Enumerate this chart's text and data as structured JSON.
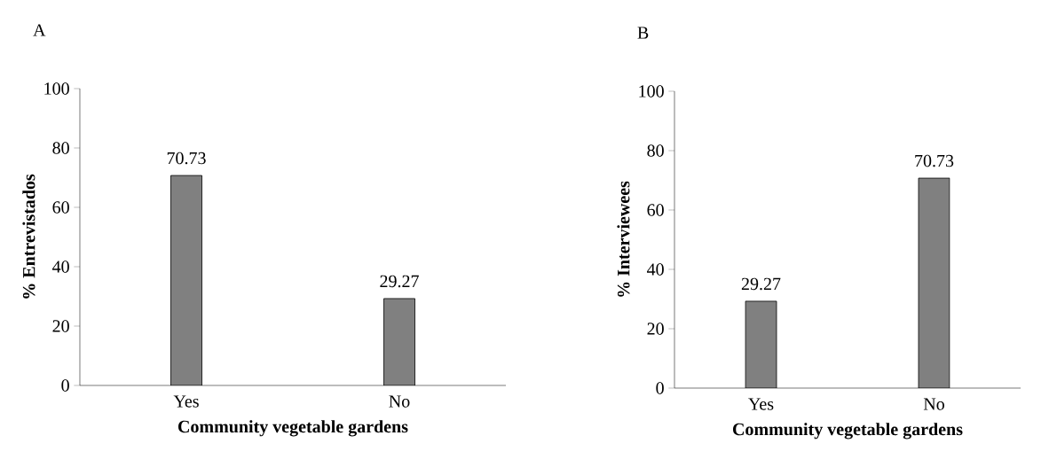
{
  "chart_data": [
    {
      "type": "bar",
      "title": "A",
      "xlabel": "Community vegetable gardens",
      "ylabel": "% Entrevistados",
      "categories": [
        "Yes",
        "No"
      ],
      "values": [
        70.73,
        29.27
      ],
      "value_labels": [
        "70.73",
        "29.27"
      ],
      "color": "#808080",
      "ylim": [
        0,
        100
      ],
      "yticks": [
        0,
        20,
        40,
        60,
        80,
        100
      ]
    },
    {
      "type": "bar",
      "title": "B",
      "xlabel": "Community vegetable gardens",
      "ylabel": "% Interviewees",
      "categories": [
        "Yes",
        "No"
      ],
      "values": [
        29.27,
        70.73
      ],
      "value_labels": [
        "29.27",
        "70.73"
      ],
      "color": "#808080",
      "ylim": [
        0,
        100
      ],
      "yticks": [
        0,
        20,
        40,
        60,
        80,
        100
      ]
    }
  ]
}
